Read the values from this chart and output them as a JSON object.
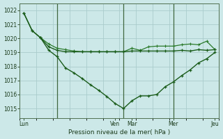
{
  "bg_color": "#cce8e8",
  "grid_color": "#aacccc",
  "line_dark": "#1a5c1a",
  "line_mid": "#2a7a2a",
  "xlabel": "Pression niveau de la mer( hPa )",
  "ylim": [
    1014.3,
    1022.5
  ],
  "yticks": [
    1015,
    1016,
    1017,
    1018,
    1019,
    1020,
    1021,
    1022
  ],
  "num_points": 24,
  "vlines": [
    4,
    12,
    18
  ],
  "s1_x": [
    0,
    1,
    2,
    3,
    4,
    5,
    6,
    7,
    8,
    9,
    10,
    11,
    12,
    13,
    14,
    15,
    16,
    17,
    18,
    19,
    20,
    21,
    22,
    23
  ],
  "s1_y": [
    1021.8,
    1020.55,
    1020.05,
    1019.4,
    1019.15,
    1019.05,
    1019.05,
    1019.05,
    1019.05,
    1019.05,
    1019.05,
    1019.05,
    1019.05,
    1019.1,
    1019.1,
    1019.1,
    1019.1,
    1019.1,
    1019.1,
    1019.15,
    1019.1,
    1019.2,
    1019.15,
    1019.2
  ],
  "s2_x": [
    0,
    1,
    2,
    3,
    4,
    5,
    6,
    7,
    8,
    9,
    10,
    11,
    12,
    13,
    14,
    15,
    16,
    17,
    18,
    19,
    20,
    21,
    22,
    23
  ],
  "s2_y": [
    1021.8,
    1020.55,
    1020.05,
    1019.15,
    1018.7,
    1017.9,
    1017.55,
    1017.15,
    1016.7,
    1016.3,
    1015.85,
    1015.35,
    1015.0,
    1015.55,
    1015.9,
    1015.9,
    1016.0,
    1016.55,
    1016.9,
    1017.35,
    1017.75,
    1018.25,
    1018.55,
    1019.0
  ],
  "s3_x": [
    2,
    3,
    4,
    5,
    6,
    7,
    8,
    9,
    10,
    11,
    12,
    13,
    14,
    15,
    16,
    17,
    18,
    19,
    20,
    21,
    22,
    23
  ],
  "s3_y": [
    1020.05,
    1019.6,
    1019.3,
    1019.2,
    1019.1,
    1019.05,
    1019.05,
    1019.05,
    1019.05,
    1019.05,
    1019.05,
    1019.3,
    1019.15,
    1019.4,
    1019.45,
    1019.45,
    1019.45,
    1019.55,
    1019.6,
    1019.55,
    1019.8,
    1019.2
  ]
}
